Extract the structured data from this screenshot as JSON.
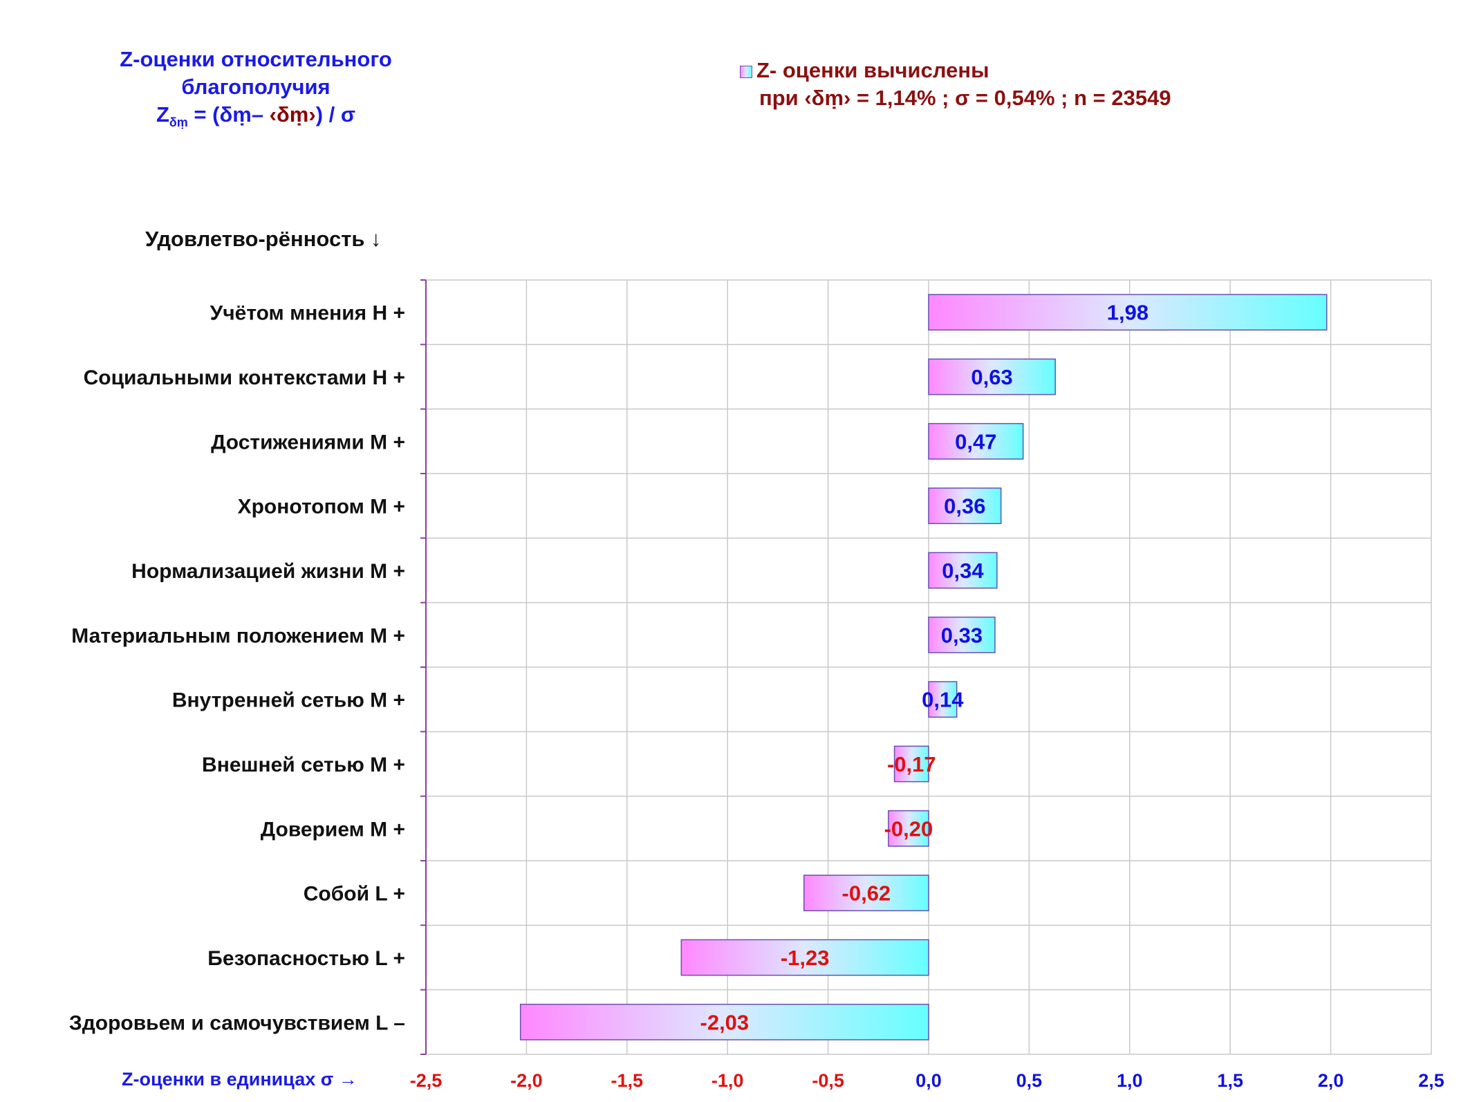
{
  "title": {
    "line1": "Z-оценки  относительного",
    "line2": "благополучия",
    "formula_z": "Z",
    "formula_sub": "δṃ",
    "formula_rest_a": " = (δṃ– ",
    "formula_rest_b": "‹δṃ›",
    "formula_rest_c": ") / σ"
  },
  "legend": {
    "line1": "Z- оценки вычислены",
    "line2": "при ‹δṃ› = 1,14% ; σ = 0,54% ; n = 23549"
  },
  "y_axis_title": "Удовлетво-рённость ↓",
  "x_axis_title": "Z-оценки в единицах σ →",
  "colors": {
    "positive_label": "#1010e0",
    "negative_label": "#e01010",
    "bar_gradient_start": "#ff88ff",
    "bar_gradient_end": "#66ffff",
    "bar_border": "#6a4fb0",
    "grid": "#c8c8c8",
    "axis": "#8a3fa0"
  },
  "chart_data": {
    "type": "bar",
    "orientation": "horizontal",
    "categories": [
      "Учётом мнения  Н +",
      "Социальными контекстами  Н +",
      "Достижениями  М +",
      "Хронотопом  М +",
      "Нормализацией жизни  М +",
      "Материальным положением  М +",
      "Внутренней сетью  М +",
      "Внешней сетью  М +",
      "Доверием  М +",
      "Собой  L +",
      "Безопасностью  L +",
      "Здоровьем и самочувствием  L –"
    ],
    "values": [
      1.98,
      0.63,
      0.47,
      0.36,
      0.34,
      0.33,
      0.14,
      -0.17,
      -0.2,
      -0.62,
      -1.23,
      -2.03
    ],
    "value_labels": [
      "1,98",
      "0,63",
      "0,47",
      "0,36",
      "0,34",
      "0,33",
      "0,14",
      "-0,17",
      "-0,20",
      "-0,62",
      "-1,23",
      "-2,03"
    ],
    "xlim": [
      -2.5,
      2.5
    ],
    "x_ticks": [
      -2.5,
      -2.0,
      -1.5,
      -1.0,
      -0.5,
      0.0,
      0.5,
      1.0,
      1.5,
      2.0,
      2.5
    ],
    "x_tick_labels": [
      "-2,5",
      "-2,0",
      "-1,5",
      "-1,0",
      "-0,5",
      "0,0",
      "0,5",
      "1,0",
      "1,5",
      "2,0",
      "2,5"
    ],
    "grid": true,
    "legend_position": "top-right"
  }
}
